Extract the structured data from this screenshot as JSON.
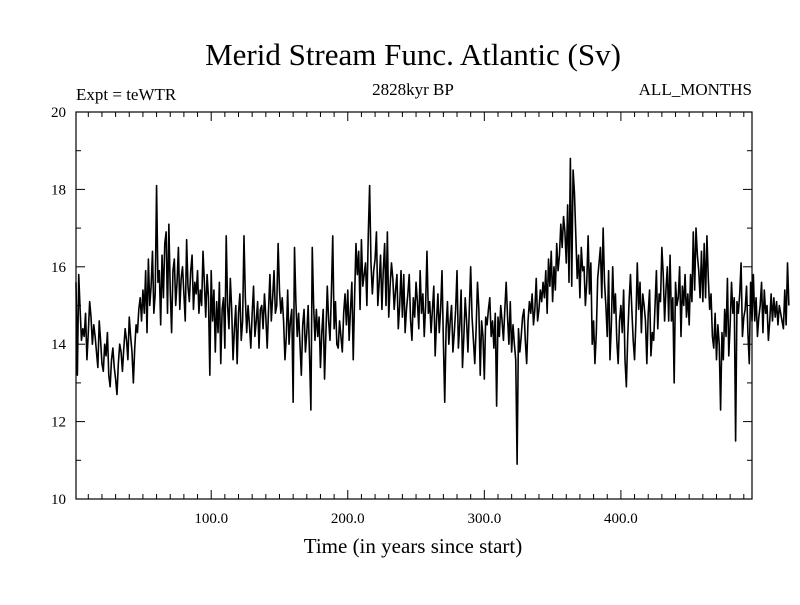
{
  "chart_data": {
    "type": "line",
    "title": "Merid Stream Func. Atlantic (Sv)",
    "subtitle_left": "Expt = teWTR",
    "subtitle_center": "2828kyr BP",
    "subtitle_right": "ALL_MONTHS",
    "xlabel": "Time (in years since start)",
    "ylabel": "",
    "xlim": [
      1,
      496
    ],
    "ylim": [
      10,
      20
    ],
    "x_ticks": [
      100,
      200,
      300,
      400
    ],
    "x_tick_labels": [
      "100.0",
      "200.0",
      "300.0",
      "400.0"
    ],
    "y_ticks": [
      10,
      12,
      14,
      16,
      18,
      20
    ],
    "y_tick_labels": [
      "10",
      "12",
      "14",
      "16",
      "18",
      "20"
    ],
    "grid": false,
    "series": [
      {
        "name": "Merid Stream Func. Atlantic",
        "color": "#000000",
        "x_start": 1,
        "x_step": 1,
        "values": [
          15.6,
          13.2,
          15.8,
          14.9,
          14.1,
          14.4,
          14.2,
          14.8,
          13.6,
          14.3,
          15.1,
          14.7,
          14.0,
          14.5,
          14.2,
          13.8,
          13.4,
          14.6,
          14.1,
          13.5,
          13.3,
          14.0,
          13.7,
          14.3,
          13.2,
          12.9,
          13.6,
          13.9,
          13.4,
          13.1,
          12.7,
          13.5,
          14.0,
          13.8,
          13.3,
          13.9,
          14.4,
          14.1,
          13.6,
          14.7,
          14.2,
          13.8,
          13.0,
          13.9,
          14.5,
          14.3,
          14.9,
          15.2,
          14.6,
          15.4,
          14.8,
          15.9,
          14.3,
          16.2,
          15.0,
          15.5,
          16.4,
          14.8,
          15.3,
          18.1,
          15.6,
          15.9,
          14.5,
          16.3,
          15.2,
          16.6,
          16.9,
          14.8,
          17.1,
          15.4,
          14.3,
          15.9,
          16.2,
          15.0,
          15.6,
          16.5,
          14.9,
          15.7,
          16.0,
          15.3,
          14.6,
          16.7,
          15.5,
          15.1,
          15.9,
          16.3,
          14.9,
          15.6,
          15.3,
          15.9,
          14.8,
          15.4,
          15.0,
          16.4,
          15.6,
          14.7,
          15.8,
          15.2,
          13.2,
          15.9,
          14.6,
          15.4,
          13.8,
          15.1,
          14.3,
          15.6,
          13.5,
          14.9,
          15.2,
          13.9,
          16.8,
          15.0,
          14.4,
          15.7,
          14.9,
          13.6,
          14.4,
          15.0,
          13.5,
          14.8,
          15.3,
          14.1,
          14.6,
          16.8,
          15.2,
          14.3,
          15.0,
          14.5,
          13.9,
          14.8,
          15.5,
          14.2,
          14.6,
          15.1,
          13.9,
          14.9,
          15.0,
          14.4,
          15.3,
          14.7,
          13.9,
          14.9,
          15.8,
          14.6,
          15.2,
          15.9,
          14.8,
          15.0,
          16.6,
          15.4,
          14.8,
          15.2,
          14.6,
          13.6,
          14.2,
          15.4,
          14.0,
          14.6,
          14.9,
          12.5,
          16.5,
          15.1,
          14.2,
          14.8,
          14.0,
          13.2,
          14.5,
          14.9,
          13.8,
          14.3,
          15.0,
          13.7,
          12.3,
          16.5,
          15.0,
          14.1,
          14.9,
          14.2,
          14.7,
          13.4,
          14.3,
          14.9,
          13.1,
          14.3,
          15.5,
          14.6,
          14.1,
          15.3,
          16.8,
          14.4,
          15.1,
          14.0,
          13.9,
          14.6,
          14.2,
          13.8,
          14.8,
          15.3,
          14.5,
          15.4,
          14.1,
          14.9,
          15.6,
          13.6,
          15.2,
          16.6,
          15.8,
          16.4,
          14.9,
          16.7,
          15.5,
          15.8,
          16.1,
          15.0,
          16.8,
          18.1,
          16.1,
          15.3,
          15.9,
          16.2,
          16.9,
          15.0,
          15.6,
          16.3,
          14.9,
          15.9,
          16.6,
          15.0,
          16.9,
          14.7,
          15.5,
          16.1,
          15.7,
          14.9,
          15.4,
          15.8,
          14.4,
          15.0,
          15.9,
          14.7,
          15.8,
          14.3,
          14.9,
          15.3,
          15.8,
          14.6,
          14.1,
          15.2,
          14.7,
          15.6,
          15.1,
          14.4,
          15.9,
          14.8,
          15.3,
          14.2,
          15.0,
          16.4,
          14.8,
          15.1,
          14.3,
          14.9,
          15.5,
          13.7,
          14.6,
          15.3,
          14.3,
          14.9,
          15.9,
          14.1,
          12.5,
          14.4,
          15.1,
          14.0,
          14.6,
          15.0,
          13.8,
          14.3,
          14.9,
          15.9,
          13.9,
          14.5,
          15.4,
          13.4,
          14.2,
          15.2,
          14.6,
          13.8,
          14.9,
          16.0,
          14.7,
          14.1,
          13.5,
          14.4,
          15.6,
          14.9,
          13.2,
          14.6,
          14.2,
          13.1,
          14.7,
          14.5,
          14.9,
          15.2,
          14.2,
          14.6,
          13.9,
          14.8,
          12.4,
          14.7,
          14.2,
          15.0,
          14.6,
          14.1,
          14.9,
          15.6,
          14.7,
          14.0,
          15.1,
          13.8,
          14.5,
          14.0,
          13.6,
          10.9,
          14.4,
          13.8,
          14.2,
          14.7,
          14.9,
          14.1,
          13.5,
          14.6,
          15.1,
          14.8,
          15.3,
          14.5,
          14.9,
          15.7,
          14.6,
          14.9,
          15.4,
          15.1,
          15.6,
          15.2,
          15.9,
          14.8,
          16.2,
          15.5,
          16.4,
          15.1,
          16.0,
          15.4,
          16.6,
          15.9,
          16.3,
          17.1,
          16.5,
          17.3,
          16.9,
          16.1,
          17.6,
          15.6,
          18.8,
          15.5,
          18.5,
          17.9,
          16.8,
          15.7,
          16.3,
          15.2,
          16.5,
          15.9,
          16.0,
          15.0,
          15.6,
          16.8,
          15.3,
          16.1,
          14.0,
          14.6,
          13.5,
          14.3,
          15.7,
          16.1,
          16.5,
          15.2,
          17.0,
          15.6,
          15.0,
          14.2,
          15.9,
          13.6,
          14.5,
          16.0,
          14.8,
          15.3,
          14.1,
          13.5,
          14.6,
          15.0,
          14.3,
          15.4,
          13.6,
          12.9,
          14.2,
          15.1,
          15.8,
          14.9,
          14.1,
          13.6,
          14.6,
          16.1,
          14.9,
          15.6,
          14.3,
          15.3,
          15.0,
          14.6,
          13.5,
          14.8,
          15.4,
          13.7,
          14.3,
          14.1,
          15.0,
          15.9,
          14.4,
          15.3,
          15.1,
          16.5,
          15.8,
          14.6,
          15.4,
          16.0,
          14.6,
          16.3,
          14.6,
          15.2,
          13.0,
          15.6,
          15.0,
          15.2,
          16.0,
          14.2,
          15.5,
          15.0,
          15.8,
          14.7,
          15.3,
          14.5,
          15.8,
          15.1,
          16.9,
          15.4,
          17.0,
          16.3,
          15.9,
          15.2,
          16.4,
          15.1,
          16.6,
          15.2,
          16.8,
          15.7,
          14.9,
          15.3,
          14.2,
          13.9,
          14.8,
          13.6,
          14.5,
          14.0,
          12.3,
          14.3,
          13.6,
          14.9,
          14.2,
          15.7,
          13.7,
          14.5,
          15.6,
          14.8,
          15.2,
          11.5,
          15.1,
          14.8,
          15.3,
          16.1,
          14.2,
          14.7,
          14.9,
          15.5,
          14.3,
          13.5,
          15.6,
          14.6,
          15.8,
          14.6,
          15.2,
          14.2,
          14.7,
          15.0,
          15.6,
          14.3,
          15.4,
          14.8,
          15.0,
          14.1,
          14.6,
          15.3,
          14.6,
          15.2,
          14.7,
          15.1,
          14.5,
          15.0,
          14.8,
          14.6,
          14.4,
          15.4,
          14.5,
          16.1,
          15.0
        ]
      }
    ]
  }
}
